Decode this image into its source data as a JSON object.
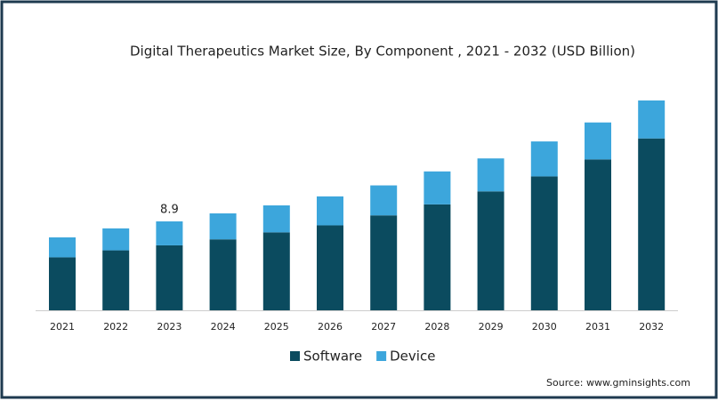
{
  "chart_data": {
    "type": "stacked-bar",
    "title": "Digital Therapeutics Market Size, By Component , 2021 - 2032 (USD Billion)",
    "categories": [
      "2021",
      "2022",
      "2023",
      "2024",
      "2025",
      "2026",
      "2027",
      "2028",
      "2029",
      "2030",
      "2031",
      "2032"
    ],
    "series": [
      {
        "name": "Software",
        "color": "#0b4b5f",
        "values": [
          5.3,
          6.0,
          6.5,
          7.1,
          7.8,
          8.5,
          9.5,
          10.6,
          11.9,
          13.4,
          15.1,
          17.2
        ]
      },
      {
        "name": "Device",
        "color": "#3ca6dc",
        "values": [
          2.0,
          2.2,
          2.4,
          2.6,
          2.7,
          2.9,
          3.0,
          3.3,
          3.3,
          3.5,
          3.7,
          3.8
        ]
      }
    ],
    "annotations": [
      {
        "category": "2023",
        "value": 8.9
      }
    ],
    "source": "Source: www.gminsights.com"
  }
}
